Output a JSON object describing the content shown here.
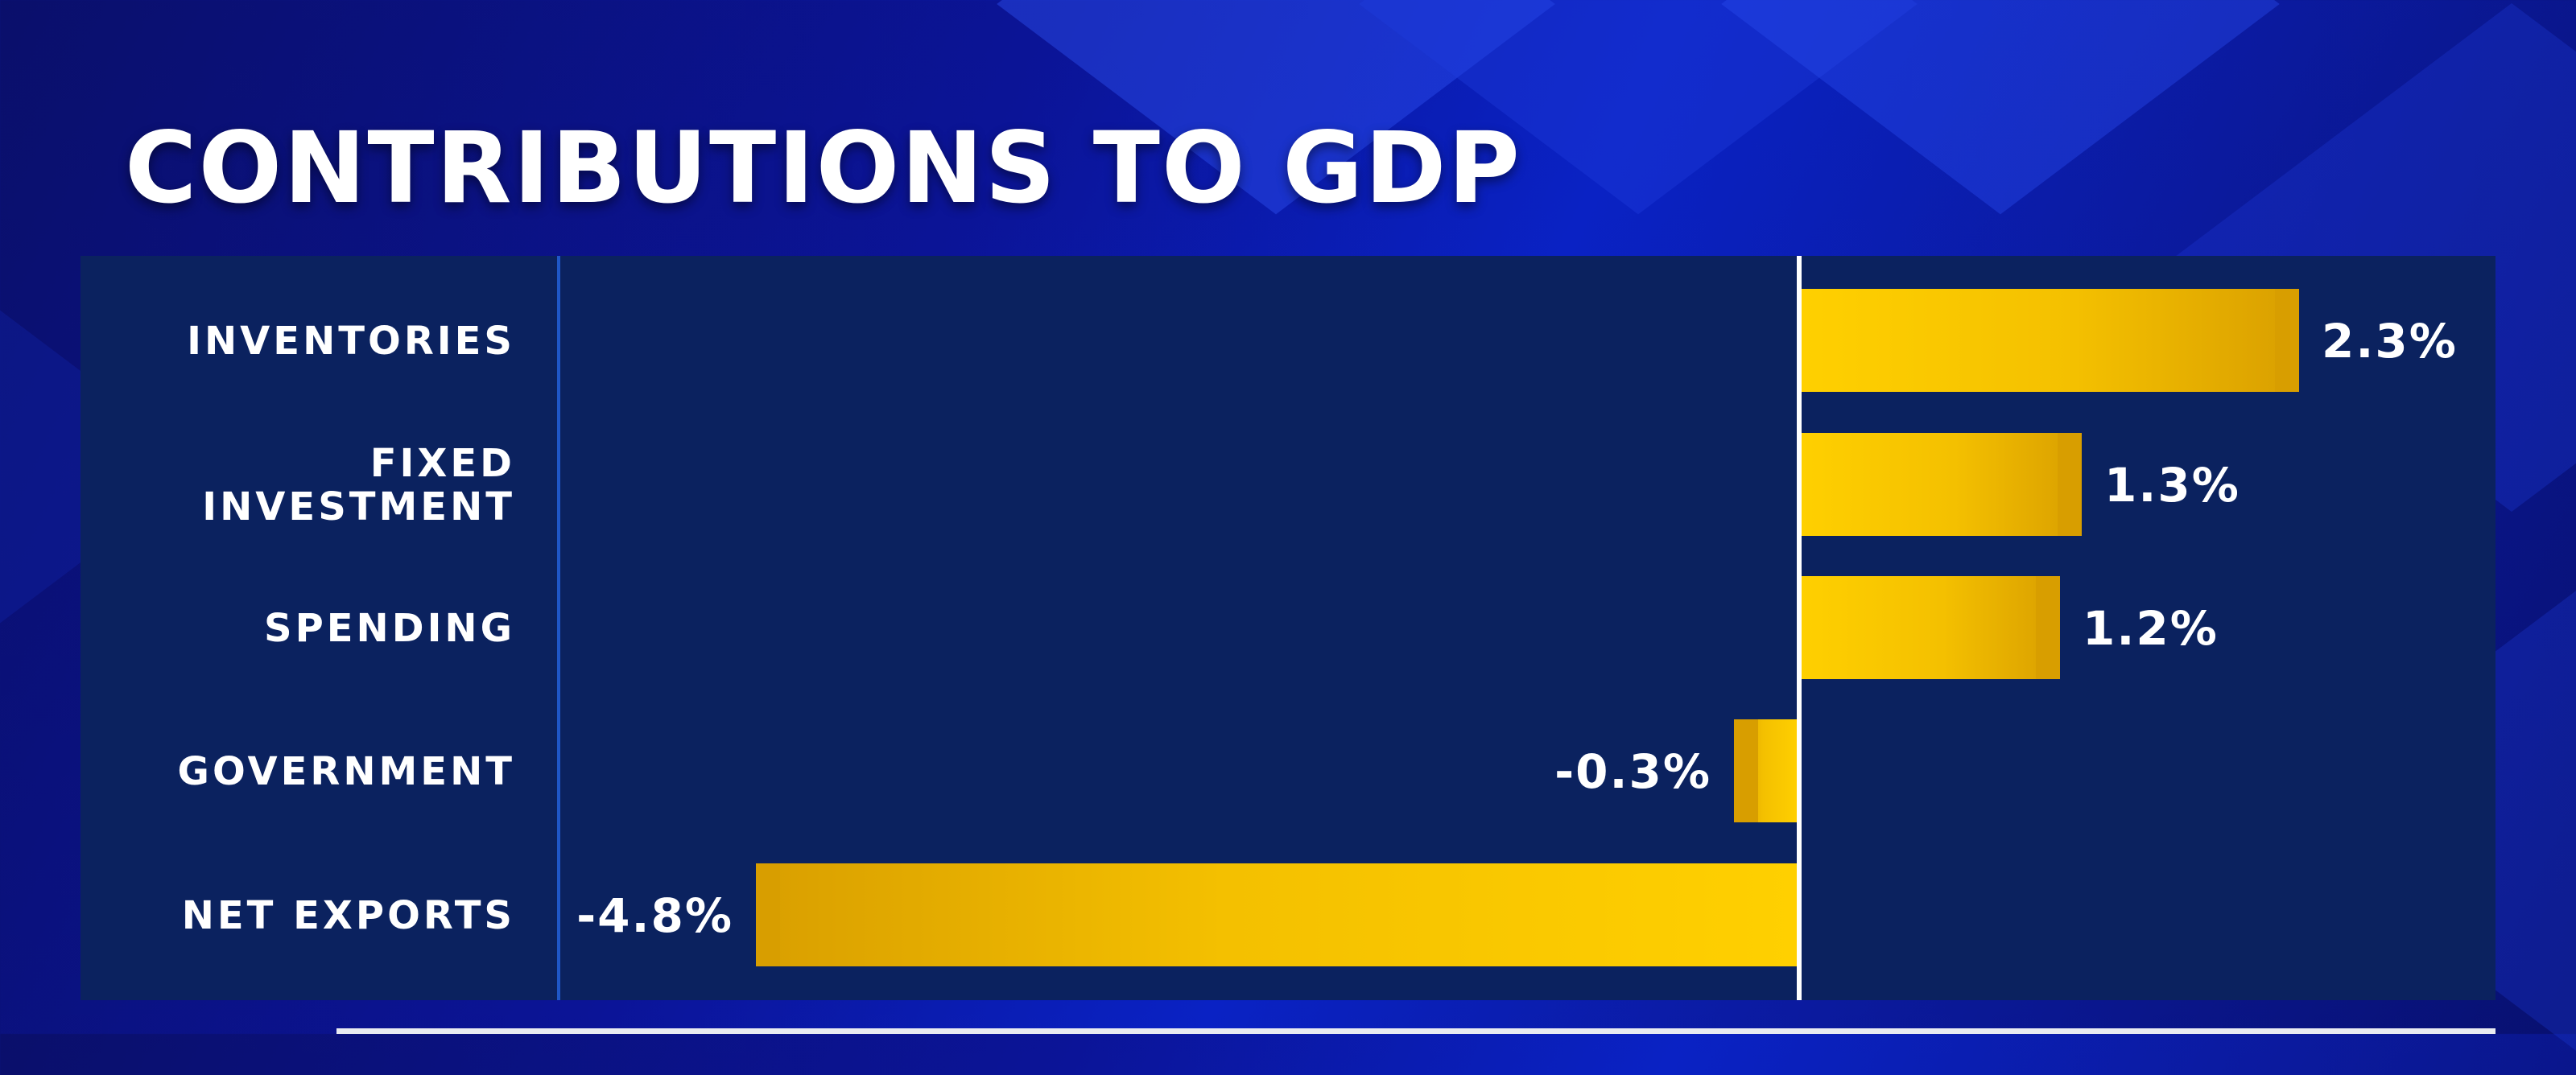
{
  "chart_data": {
    "type": "bar",
    "orientation": "horizontal",
    "title": "CONTRIBUTIONS TO GDP",
    "categories": [
      [
        "INVENTORIES"
      ],
      [
        "FIXED",
        "INVESTMENT"
      ],
      [
        "SPENDING"
      ],
      [
        "GOVERNMENT"
      ],
      [
        "NET EXPORTS"
      ]
    ],
    "values": [
      2.3,
      1.3,
      1.2,
      -0.3,
      -4.8
    ],
    "value_labels": [
      "2.3%",
      "1.3%",
      "1.2%",
      "-0.3%",
      "-4.8%"
    ],
    "unit": "%",
    "xlim": [
      -5.4,
      3.15
    ],
    "legend": "none",
    "grid": false,
    "colors": {
      "bar": "#f7c600",
      "bar_dark": "#d89e00",
      "panel": "#0b225f",
      "zero_line": "#ffffff"
    }
  }
}
